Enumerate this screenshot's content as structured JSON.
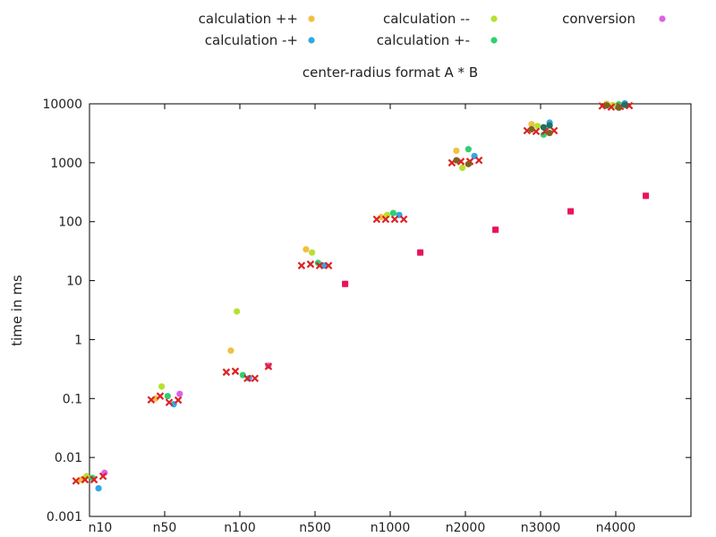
{
  "chart_data": {
    "type": "scatter",
    "title": "center-radius format A * B",
    "xlabel": "",
    "ylabel": "time in ms",
    "yscale": "log",
    "ylim": [
      0.001,
      10000
    ],
    "yticks": [
      "0.001",
      "0.01",
      "0.1",
      "1",
      "10",
      "100",
      "1000",
      "10000"
    ],
    "categories": [
      "n10",
      "n50",
      "n100",
      "n500",
      "n1000",
      "n2000",
      "n3000",
      "n4000"
    ],
    "grid": false,
    "legend_position": "top",
    "series": [
      {
        "name": "calculation ++",
        "color": "#f0c040",
        "marker": "circle",
        "points": [
          {
            "category": "n10",
            "offset": -0.12,
            "y": 0.0042
          },
          {
            "category": "n50",
            "offset": -0.12,
            "y": 0.1
          },
          {
            "category": "n100",
            "offset": -0.12,
            "y": 0.65
          },
          {
            "category": "n500",
            "offset": -0.12,
            "y": 34
          },
          {
            "category": "n1000",
            "offset": -0.12,
            "y": 120
          },
          {
            "category": "n2000",
            "offset": -0.12,
            "y": 1600
          },
          {
            "category": "n3000",
            "offset": -0.12,
            "y": 4500
          },
          {
            "category": "n4000",
            "offset": -0.12,
            "y": 10000
          }
        ]
      },
      {
        "name": "calculation --",
        "color": "#b8e030",
        "marker": "circle",
        "points": [
          {
            "category": "n10",
            "offset": -0.04,
            "y": 0.0048
          },
          {
            "category": "n50",
            "offset": -0.04,
            "y": 0.16
          },
          {
            "category": "n100",
            "offset": -0.04,
            "y": 3.0
          },
          {
            "category": "n500",
            "offset": -0.04,
            "y": 30
          },
          {
            "category": "n1000",
            "offset": -0.04,
            "y": 130
          },
          {
            "category": "n2000",
            "offset": -0.04,
            "y": 820
          },
          {
            "category": "n3000",
            "offset": -0.04,
            "y": 4200
          },
          {
            "category": "n4000",
            "offset": -0.04,
            "y": 9500
          }
        ]
      },
      {
        "name": "calculation +-",
        "color": "#30d070",
        "marker": "circle",
        "points": [
          {
            "category": "n10",
            "offset": 0.04,
            "y": 0.0045
          },
          {
            "category": "n50",
            "offset": 0.04,
            "y": 0.11
          },
          {
            "category": "n100",
            "offset": 0.04,
            "y": 0.25
          },
          {
            "category": "n500",
            "offset": 0.04,
            "y": 20
          },
          {
            "category": "n1000",
            "offset": 0.04,
            "y": 140
          },
          {
            "category": "n2000",
            "offset": 0.04,
            "y": 1700
          },
          {
            "category": "n3000",
            "offset": 0.04,
            "y": 3000
          },
          {
            "category": "n4000",
            "offset": 0.04,
            "y": 9800
          }
        ]
      },
      {
        "name": "calculation -+",
        "color": "#30a8e8",
        "marker": "circle",
        "points": [
          {
            "category": "n10",
            "offset": 0.12,
            "y": 0.003
          },
          {
            "category": "n50",
            "offset": 0.12,
            "y": 0.08
          },
          {
            "category": "n100",
            "offset": 0.12,
            "y": 0.22
          },
          {
            "category": "n500",
            "offset": 0.12,
            "y": 18
          },
          {
            "category": "n1000",
            "offset": 0.12,
            "y": 130
          },
          {
            "category": "n2000",
            "offset": 0.12,
            "y": 1300
          },
          {
            "category": "n3000",
            "offset": 0.12,
            "y": 4800
          },
          {
            "category": "n4000",
            "offset": 0.12,
            "y": 10200
          }
        ]
      },
      {
        "name": "conversion",
        "color": "#e060e8",
        "marker": "circle",
        "points": [
          {
            "category": "n10",
            "offset": 0.2,
            "y": 0.0055
          },
          {
            "category": "n50",
            "offset": 0.2,
            "y": 0.12
          },
          {
            "category": "n100",
            "offset": 0.38,
            "y": 0.36
          },
          {
            "category": "n500",
            "offset": 0.4,
            "y": 8.8
          },
          {
            "category": "n1000",
            "offset": 0.4,
            "y": 30
          },
          {
            "category": "n2000",
            "offset": 0.4,
            "y": 73
          },
          {
            "category": "n3000",
            "offset": 0.4,
            "y": 150
          },
          {
            "category": "n4000",
            "offset": 0.4,
            "y": 275
          }
        ]
      }
    ],
    "unlabeled_series": [
      {
        "color": "#dd2222",
        "marker": "cross",
        "points": [
          {
            "category": "n10",
            "offset": -0.18,
            "y": 0.004
          },
          {
            "category": "n10",
            "offset": -0.06,
            "y": 0.0042
          },
          {
            "category": "n10",
            "offset": 0.06,
            "y": 0.0042
          },
          {
            "category": "n10",
            "offset": 0.18,
            "y": 0.0048
          },
          {
            "category": "n50",
            "offset": -0.18,
            "y": 0.095
          },
          {
            "category": "n50",
            "offset": -0.06,
            "y": 0.11
          },
          {
            "category": "n50",
            "offset": 0.06,
            "y": 0.086
          },
          {
            "category": "n50",
            "offset": 0.18,
            "y": 0.094
          },
          {
            "category": "n100",
            "offset": -0.18,
            "y": 0.28
          },
          {
            "category": "n100",
            "offset": -0.06,
            "y": 0.29
          },
          {
            "category": "n100",
            "offset": 0.1,
            "y": 0.22
          },
          {
            "category": "n100",
            "offset": 0.2,
            "y": 0.22
          },
          {
            "category": "n100",
            "offset": 0.38,
            "y": 0.35
          },
          {
            "category": "n500",
            "offset": -0.18,
            "y": 18
          },
          {
            "category": "n500",
            "offset": -0.06,
            "y": 19
          },
          {
            "category": "n500",
            "offset": 0.06,
            "y": 18
          },
          {
            "category": "n500",
            "offset": 0.18,
            "y": 18
          },
          {
            "category": "n1000",
            "offset": -0.18,
            "y": 110
          },
          {
            "category": "n1000",
            "offset": -0.06,
            "y": 110
          },
          {
            "category": "n1000",
            "offset": 0.06,
            "y": 110
          },
          {
            "category": "n1000",
            "offset": 0.18,
            "y": 110
          },
          {
            "category": "n2000",
            "offset": -0.18,
            "y": 1000
          },
          {
            "category": "n2000",
            "offset": -0.06,
            "y": 1050
          },
          {
            "category": "n2000",
            "offset": 0.06,
            "y": 1050
          },
          {
            "category": "n2000",
            "offset": 0.18,
            "y": 1100
          },
          {
            "category": "n3000",
            "offset": -0.18,
            "y": 3500
          },
          {
            "category": "n3000",
            "offset": -0.06,
            "y": 3400
          },
          {
            "category": "n3000",
            "offset": 0.06,
            "y": 3400
          },
          {
            "category": "n3000",
            "offset": 0.18,
            "y": 3500
          },
          {
            "category": "n4000",
            "offset": -0.18,
            "y": 9200
          },
          {
            "category": "n4000",
            "offset": -0.06,
            "y": 8800
          },
          {
            "category": "n4000",
            "offset": 0.06,
            "y": 9000
          },
          {
            "category": "n4000",
            "offset": 0.18,
            "y": 9300
          }
        ]
      },
      {
        "color": "#e8145a",
        "marker": "square",
        "points": [
          {
            "category": "n500",
            "offset": 0.4,
            "y": 8.8
          },
          {
            "category": "n1000",
            "offset": 0.4,
            "y": 30
          },
          {
            "category": "n2000",
            "offset": 0.4,
            "y": 73
          },
          {
            "category": "n3000",
            "offset": 0.4,
            "y": 150
          },
          {
            "category": "n4000",
            "offset": 0.4,
            "y": 275
          }
        ]
      },
      {
        "color": "#806020",
        "marker": "circle",
        "points": [
          {
            "category": "n2000",
            "offset": -0.12,
            "y": 1100
          },
          {
            "category": "n2000",
            "offset": 0.04,
            "y": 950
          },
          {
            "category": "n3000",
            "offset": -0.12,
            "y": 3700
          },
          {
            "category": "n3000",
            "offset": 0.12,
            "y": 3200
          },
          {
            "category": "n4000",
            "offset": -0.12,
            "y": 9400
          },
          {
            "category": "n4000",
            "offset": 0.04,
            "y": 8600
          }
        ]
      },
      {
        "color": "#207060",
        "marker": "circle",
        "points": [
          {
            "category": "n3000",
            "offset": 0.04,
            "y": 4000
          },
          {
            "category": "n3000",
            "offset": 0.12,
            "y": 4300
          },
          {
            "category": "n4000",
            "offset": 0.12,
            "y": 9600
          }
        ]
      }
    ]
  }
}
